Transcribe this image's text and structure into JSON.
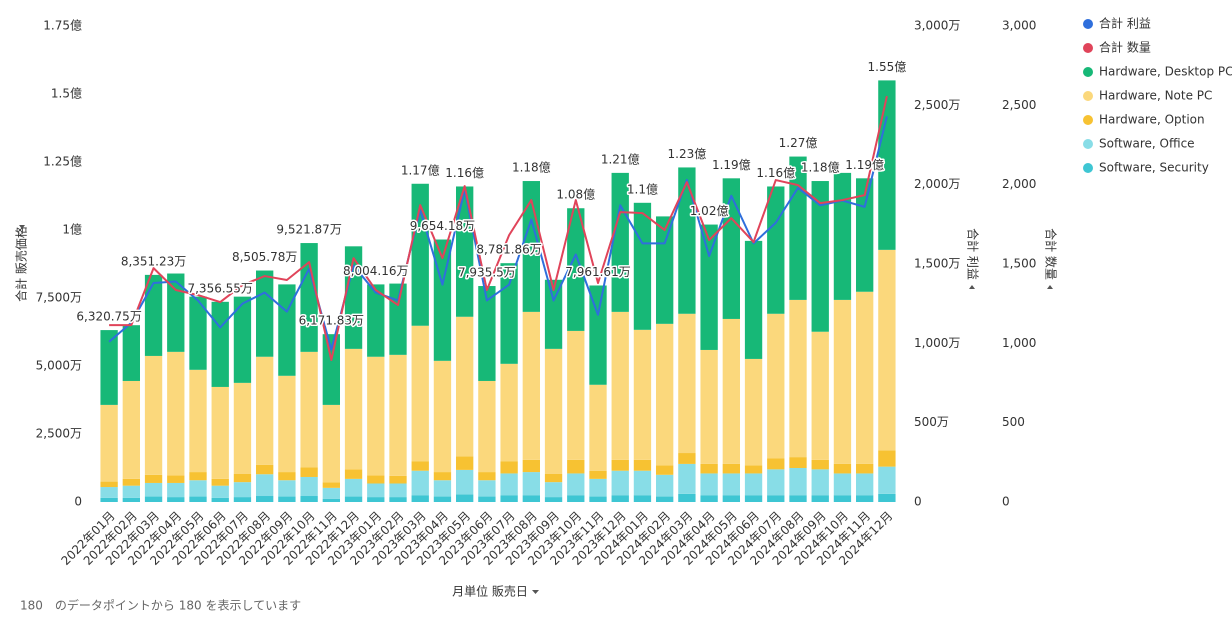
{
  "chart_data": {
    "type": "bar",
    "categories": [
      "2022年01月",
      "2022年02月",
      "2022年03月",
      "2022年04月",
      "2022年05月",
      "2022年06月",
      "2022年07月",
      "2022年08月",
      "2022年09月",
      "2022年10月",
      "2022年11月",
      "2022年12月",
      "2023年01月",
      "2023年02月",
      "2023年03月",
      "2023年04月",
      "2023年05月",
      "2023年06月",
      "2023年07月",
      "2023年08月",
      "2023年09月",
      "2023年10月",
      "2023年11月",
      "2023年12月",
      "2024年01月",
      "2024年02月",
      "2024年03月",
      "2024年04月",
      "2024年05月",
      "2024年06月",
      "2024年07月",
      "2024年08月",
      "2024年09月",
      "2024年10月",
      "2024年11月",
      "2024年12月"
    ],
    "y_label": "合計 販売価格",
    "y2_label": "合計 利益",
    "y3_label": "合計 数量",
    "x_label": "月単位 販売日",
    "footer": "180　のデータポイントから 180 を表示しています",
    "ylim": [
      0,
      175000000
    ],
    "yticks": [
      0,
      {
        "value": 25000000,
        "label": "2,500万"
      },
      {
        "value": 50000000,
        "label": "5,000万"
      },
      {
        "value": 75000000,
        "label": "7,500万"
      },
      {
        "value": 100000000,
        "label": "1億"
      },
      {
        "value": 125000000,
        "label": "1.25億"
      },
      {
        "value": 150000000,
        "label": "1.5億"
      },
      {
        "value": 175000000,
        "label": "1.75億"
      }
    ],
    "y2lim": [
      0,
      30000000
    ],
    "y2ticks": [
      0,
      {
        "value": 5000000,
        "label": "500万"
      },
      {
        "value": 10000000,
        "label": "1,000万"
      },
      {
        "value": 15000000,
        "label": "1,500万"
      },
      {
        "value": 20000000,
        "label": "2,000万"
      },
      {
        "value": 25000000,
        "label": "2,500万"
      },
      {
        "value": 30000000,
        "label": "3,000万"
      }
    ],
    "y3lim": [
      0,
      3000
    ],
    "y3ticks": [
      0,
      500,
      {
        "value": 1000,
        "label": "1,000"
      },
      {
        "value": 1500,
        "label": "1,500"
      },
      {
        "value": 2000,
        "label": "2,000"
      },
      {
        "value": 2500,
        "label": "2,500"
      },
      {
        "value": 3000,
        "label": "3,000"
      }
    ],
    "total_labels": [
      "6,320.75万",
      null,
      "8,351.23万",
      null,
      null,
      "7,356.55万",
      null,
      "8,505.78万",
      null,
      "9,521.87万",
      "6,171.83万",
      null,
      "8,004.16万",
      null,
      "1.17億",
      "9,654.18万",
      "1.16億",
      "7,935.5万",
      "8,781.86万",
      "1.18億",
      null,
      "1.08億",
      "7,961.61万",
      "1.21億",
      "1.1億",
      null,
      "1.23億",
      "1.02億",
      "1.19億",
      null,
      "1.16億",
      "1.27億",
      "1.18億",
      null,
      "1.19億",
      "1.55億"
    ],
    "series": [
      {
        "name": "合計 利益",
        "type": "line",
        "axis": "y2",
        "color": "#2f6fdc",
        "values": [
          10100000,
          11300000,
          13800000,
          13900000,
          12700000,
          11000000,
          12500000,
          13200000,
          12000000,
          14700000,
          9600000,
          14900000,
          13200000,
          12700000,
          18400000,
          13700000,
          19700000,
          12700000,
          13700000,
          17800000,
          12700000,
          15600000,
          11800000,
          18700000,
          16300000,
          16300000,
          20300000,
          15500000,
          19300000,
          16300000,
          17600000,
          19800000,
          18700000,
          19000000,
          18600000,
          24300000
        ]
      },
      {
        "name": "合計 数量",
        "type": "line",
        "axis": "y3",
        "color": "#e0445a",
        "values": [
          1115,
          1115,
          1474,
          1336,
          1304,
          1260,
          1367,
          1424,
          1399,
          1512,
          895,
          1537,
          1336,
          1241,
          1871,
          1537,
          1991,
          1336,
          1682,
          1903,
          1336,
          1903,
          1380,
          1827,
          1821,
          1714,
          2016,
          1651,
          1789,
          1638,
          2029,
          1997,
          1884,
          1903,
          1934,
          2558
        ]
      },
      {
        "name": "Hardware, Desktop PC",
        "type": "bar",
        "color": "#17b877",
        "values": [
          27500000,
          20500000,
          29800000,
          28800000,
          26900000,
          31300000,
          31700000,
          31700000,
          33600000,
          40000000,
          26000000,
          37700000,
          26600000,
          26200000,
          52200000,
          44600000,
          47900000,
          34900000,
          37000000,
          48100000,
          25400000,
          45100000,
          36500000,
          51100000,
          46700000,
          39500000,
          53800000,
          46100000,
          51700000,
          43400000,
          46800000,
          52700000,
          55400000,
          46700000,
          41700000,
          62300000
        ]
      },
      {
        "name": "Hardware, Note PC",
        "type": "bar",
        "color": "#fbd87c",
        "values": [
          28200000,
          36000000,
          43700000,
          45400000,
          37600000,
          33800000,
          33500000,
          39700000,
          35400000,
          42500000,
          28500000,
          44300000,
          43600000,
          44500000,
          49800000,
          40900000,
          51300000,
          33500000,
          35800000,
          54400000,
          46000000,
          47400000,
          31600000,
          54400000,
          47800000,
          52000000,
          51200000,
          41900000,
          53300000,
          39100000,
          53200000,
          57800000,
          47100000,
          60300000,
          63300000,
          73700000
        ]
      },
      {
        "name": "Hardware, Option",
        "type": "bar",
        "color": "#f7c232",
        "values": [
          2000000,
          2500000,
          3000000,
          2800000,
          3000000,
          2500000,
          3000000,
          3500000,
          3000000,
          3500000,
          2000000,
          3500000,
          3000000,
          2800000,
          3500000,
          3000000,
          5000000,
          3000000,
          4500000,
          4500000,
          3000000,
          5000000,
          3000000,
          4000000,
          4000000,
          3500000,
          4000000,
          3500000,
          3500000,
          3000000,
          4000000,
          4000000,
          3500000,
          3500000,
          3500000,
          6000000
        ]
      },
      {
        "name": "Software, Office",
        "type": "bar",
        "color": "#88dde7",
        "values": [
          4000000,
          4500000,
          5000000,
          5200000,
          6000000,
          4500000,
          5500000,
          8000000,
          6000000,
          7000000,
          4000000,
          6500000,
          5000000,
          5000000,
          9000000,
          6000000,
          9000000,
          6000000,
          8000000,
          8500000,
          5500000,
          8000000,
          6500000,
          9000000,
          9000000,
          8000000,
          11000000,
          8000000,
          8000000,
          8000000,
          9500000,
          10000000,
          9500000,
          8000000,
          8000000,
          10000000
        ]
      },
      {
        "name": "Software, Security",
        "type": "bar",
        "color": "#3ec6d3",
        "values": [
          1500000,
          1500000,
          2000000,
          1800000,
          2000000,
          1500000,
          1800000,
          2200000,
          2000000,
          2200000,
          1200000,
          2000000,
          1800000,
          1800000,
          2500000,
          2000000,
          2800000,
          2000000,
          2500000,
          2500000,
          1800000,
          2500000,
          2000000,
          2500000,
          2500000,
          2000000,
          3000000,
          2500000,
          2500000,
          2500000,
          2500000,
          2500000,
          2500000,
          2500000,
          2500000,
          3000000
        ]
      }
    ]
  }
}
